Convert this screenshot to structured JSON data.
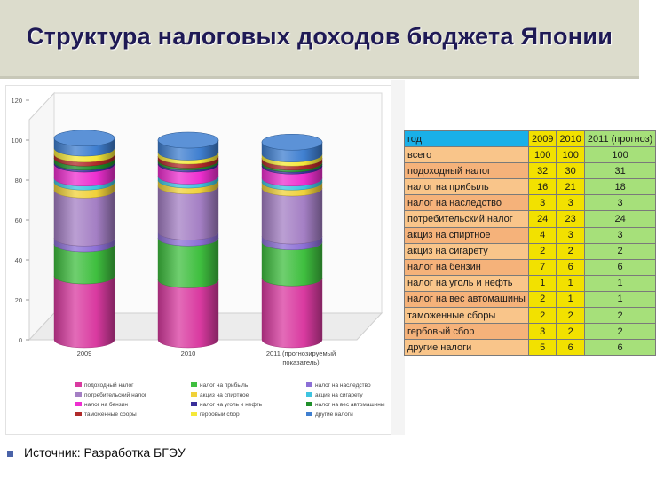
{
  "header": {
    "title": "Структура налоговых доходов бюджета Японии"
  },
  "footer": {
    "source": "Источник: Разработка БГЭУ"
  },
  "table": {
    "headers": [
      "год",
      "2009",
      "2010",
      "2011 (прогноз)"
    ],
    "header_colors": {
      "label": "#1ab0e8",
      "y2009": "#f2e100",
      "y2010": "#f2e100",
      "y2011": "#a6e07a"
    },
    "rows": [
      {
        "label": "всего",
        "v": [
          "100",
          "100",
          "100"
        ]
      },
      {
        "label": "подоходный налог",
        "v": [
          "32",
          "30",
          "31"
        ]
      },
      {
        "label": "налог на прибыль",
        "v": [
          "16",
          "21",
          "18"
        ]
      },
      {
        "label": "налог на наследство",
        "v": [
          "3",
          "3",
          "3"
        ]
      },
      {
        "label": "потребительский налог",
        "v": [
          "24",
          "23",
          "24"
        ]
      },
      {
        "label": "акциз на спиртное",
        "v": [
          "4",
          "3",
          "3"
        ]
      },
      {
        "label": "акциз на сигарету",
        "v": [
          "2",
          "2",
          "2"
        ]
      },
      {
        "label": "налог на бензин",
        "v": [
          "7",
          "6",
          "6"
        ]
      },
      {
        "label": "налог на уголь и нефть",
        "v": [
          "1",
          "1",
          "1"
        ]
      },
      {
        "label": "налог на вес автомашины",
        "v": [
          "2",
          "1",
          "1"
        ]
      },
      {
        "label": "таможенные сборы",
        "v": [
          "2",
          "2",
          "2"
        ]
      },
      {
        "label": "гербовый сбор",
        "v": [
          "3",
          "2",
          "2"
        ]
      },
      {
        "label": "другие налоги",
        "v": [
          "5",
          "6",
          "6"
        ]
      }
    ],
    "row_colors": [
      "#f9c58a",
      "#f5b27a"
    ]
  },
  "chart_data": {
    "type": "bar",
    "stacked": true,
    "categories": [
      "2009",
      "2010",
      "2011 (прогнозируемый показатель)"
    ],
    "ylim": [
      0,
      120
    ],
    "yticks": [
      "0",
      "20",
      "40",
      "60",
      "80",
      "100",
      "120"
    ],
    "series": [
      {
        "name": "подоходный налог",
        "color": "#d93aa0",
        "values": [
          32,
          30,
          31
        ]
      },
      {
        "name": "налог на прибыль",
        "color": "#3fbf3f",
        "values": [
          16,
          21,
          18
        ]
      },
      {
        "name": "налог на наследство",
        "color": "#8c6fd6",
        "values": [
          3,
          3,
          3
        ]
      },
      {
        "name": "потребительский налог",
        "color": "#a47fc4",
        "values": [
          24,
          23,
          24
        ]
      },
      {
        "name": "акциз на спиртное",
        "color": "#f0d13a",
        "values": [
          4,
          3,
          3
        ]
      },
      {
        "name": "акциз на сигарету",
        "color": "#3fc4e0",
        "values": [
          2,
          2,
          2
        ]
      },
      {
        "name": "налог на бензин",
        "color": "#ee2fd0",
        "values": [
          7,
          6,
          6
        ]
      },
      {
        "name": "налог на уголь и нефть",
        "color": "#3a2f9a",
        "values": [
          1,
          1,
          1
        ]
      },
      {
        "name": "налог на вес автомашины",
        "color": "#1f8f2a",
        "values": [
          2,
          1,
          1
        ]
      },
      {
        "name": "таможенные сборы",
        "color": "#b02a2a",
        "values": [
          2,
          2,
          2
        ]
      },
      {
        "name": "гербовый сбор",
        "color": "#f5e83a",
        "values": [
          3,
          2,
          2
        ]
      },
      {
        "name": "другие налоги",
        "color": "#3f7fd0",
        "values": [
          5,
          6,
          6
        ]
      }
    ]
  }
}
